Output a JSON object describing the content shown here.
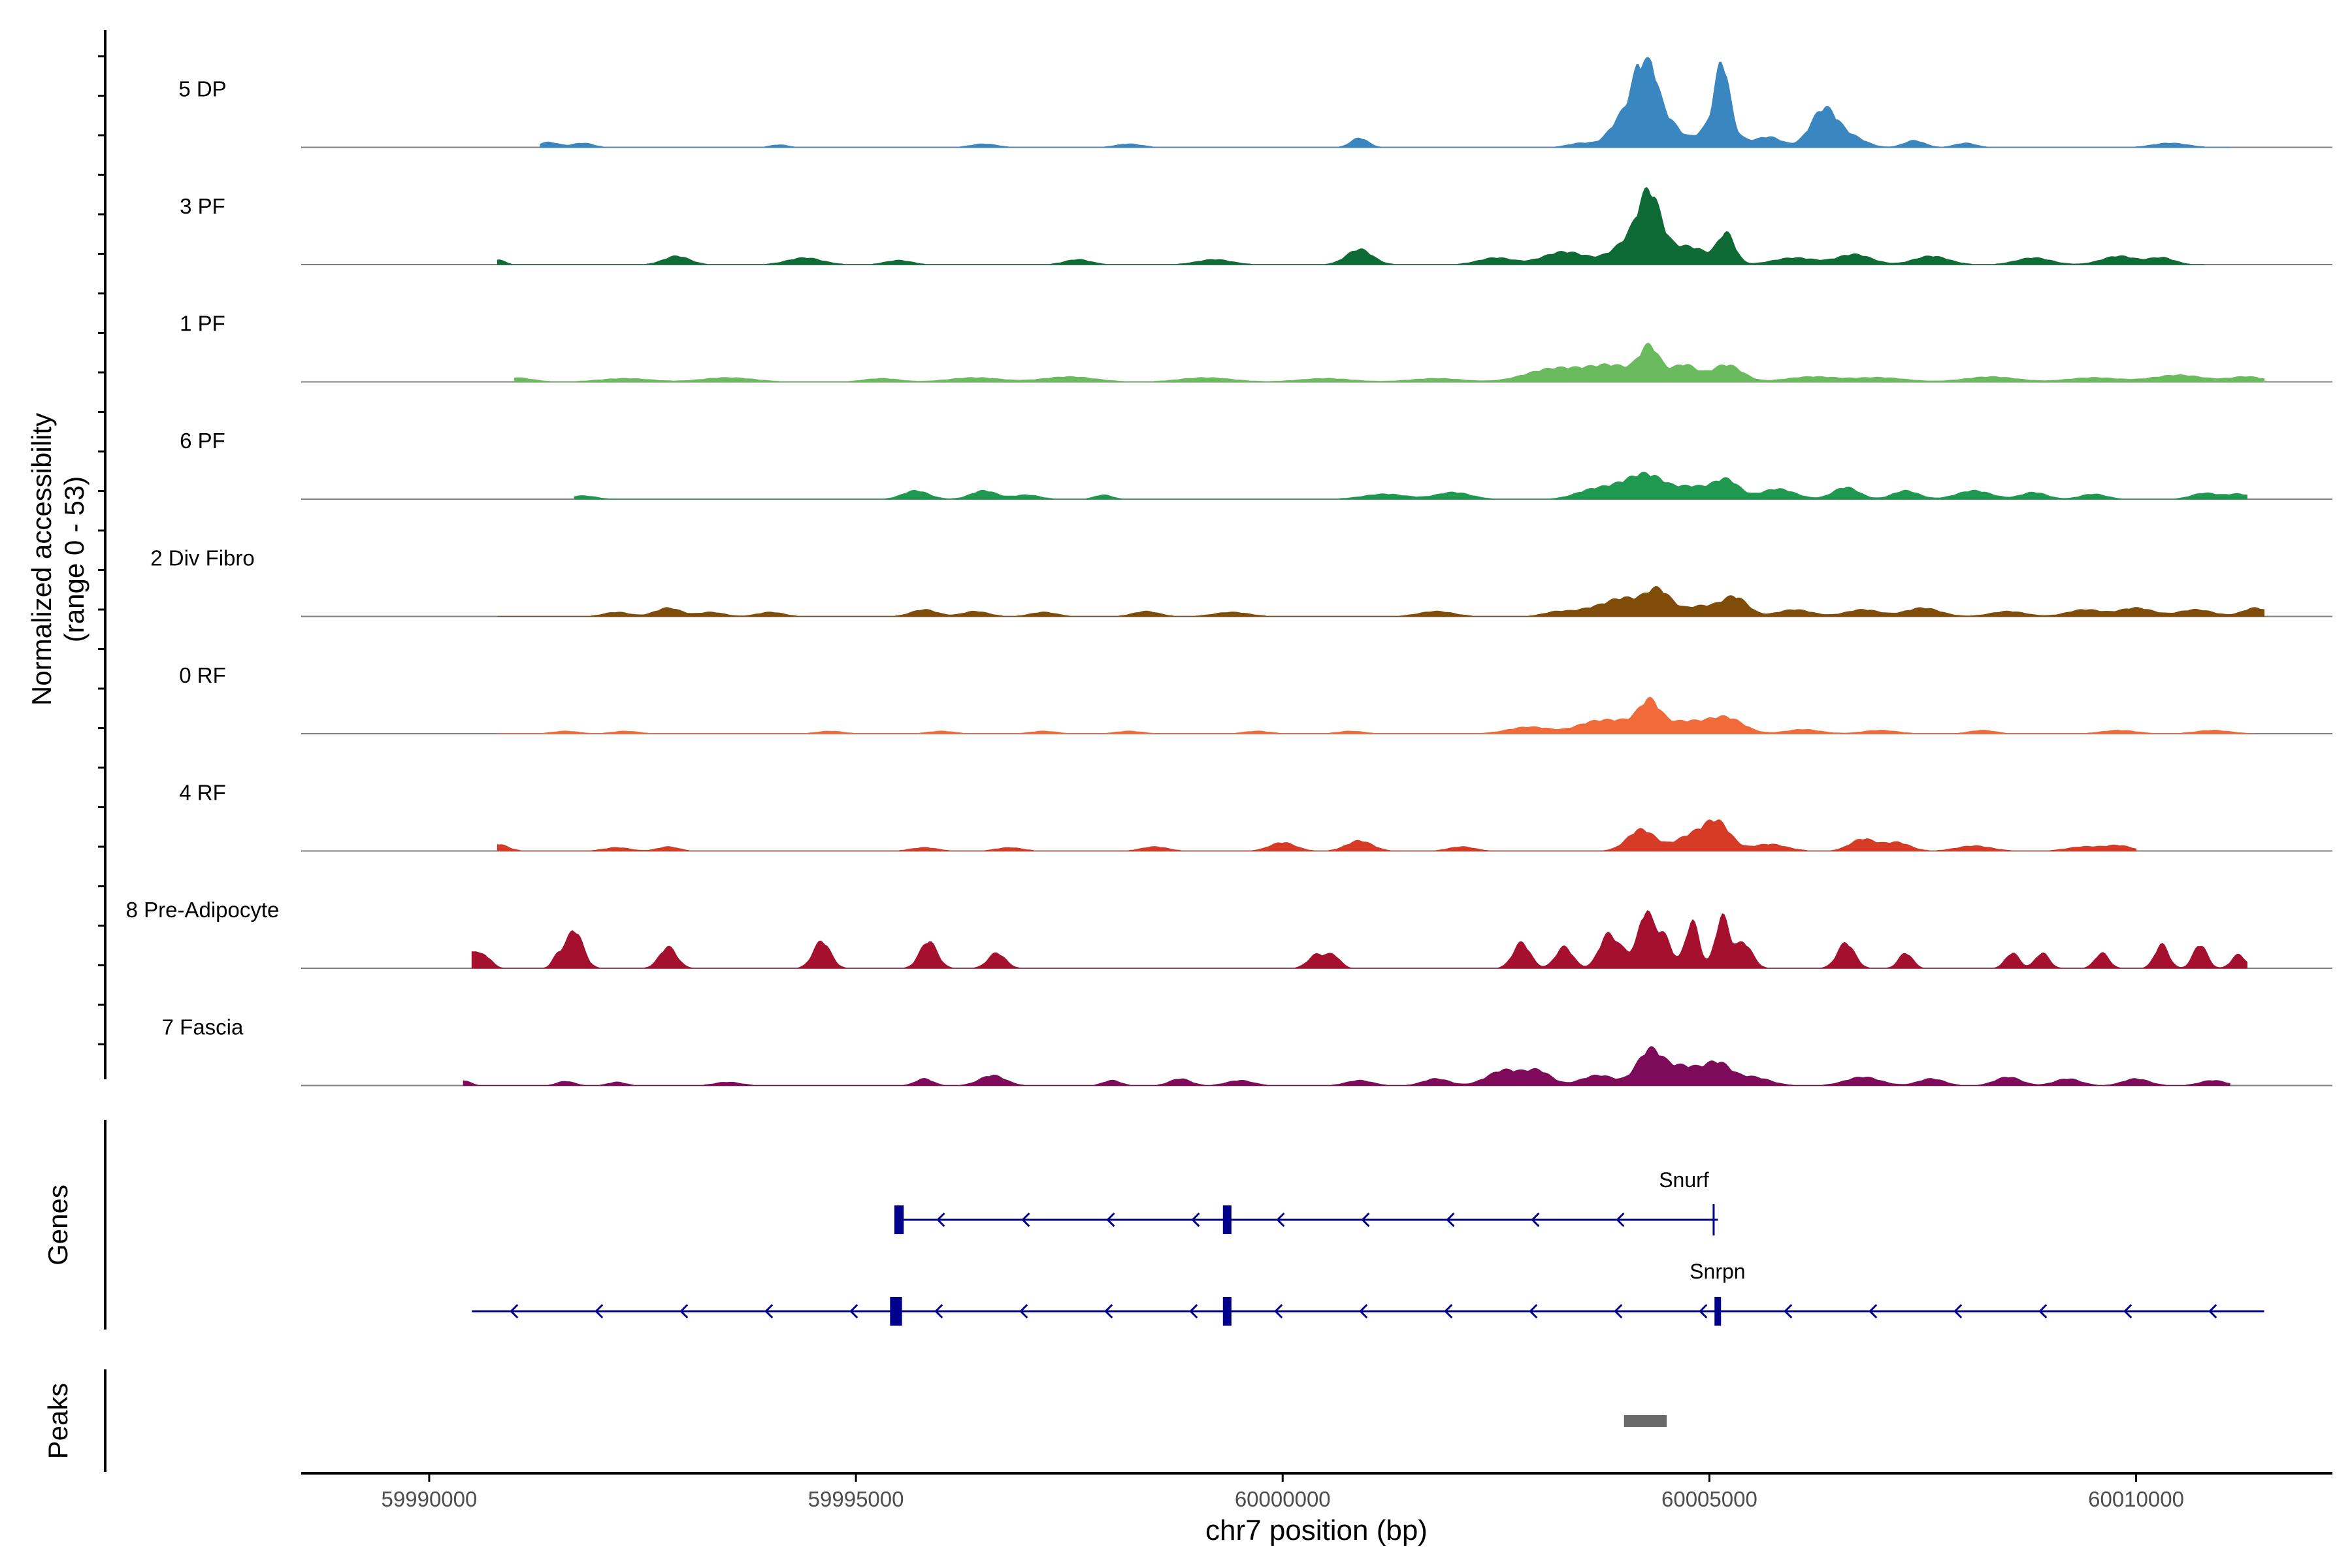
{
  "chart_data": {
    "type": "area",
    "title": "",
    "ylabel_line1": "Normalized accessibility",
    "ylabel_line2": "(range 0 - 53)",
    "y_range": [
      0,
      53
    ],
    "xlabel": "chr7 position (bp)",
    "xlim": [
      59988500,
      60012300
    ],
    "x_ticks": [
      59990000,
      59995000,
      60000000,
      60005000,
      60010000
    ],
    "x_tick_labels": [
      "59990000",
      "59995000",
      "60000000",
      "60005000",
      "60010000"
    ],
    "tracks": [
      {
        "name": "5 DP",
        "color": "#3a86c0",
        "start": 59991300,
        "end": 60011100,
        "peaks": [
          [
            59991400,
            6,
            120
          ],
          [
            59991800,
            5,
            120
          ],
          [
            59994100,
            3,
            100
          ],
          [
            59996500,
            4,
            150
          ],
          [
            59998200,
            4,
            150
          ],
          [
            60000900,
            11,
            100
          ],
          [
            60003500,
            5,
            150
          ],
          [
            60004000,
            36,
            160
          ],
          [
            60004250,
            100,
            120
          ],
          [
            60004500,
            30,
            150
          ],
          [
            60005150,
            72,
            80
          ],
          [
            60005100,
            30,
            200
          ],
          [
            60005700,
            12,
            150
          ],
          [
            60006350,
            46,
            160
          ],
          [
            60006700,
            10,
            150
          ],
          [
            60007400,
            8,
            120
          ],
          [
            60008000,
            5,
            120
          ],
          [
            60010400,
            5,
            200
          ]
        ]
      },
      {
        "name": "3 PF",
        "color": "#0e6b35",
        "start": 59990800,
        "end": 60010800,
        "peaks": [
          [
            59990800,
            6,
            80
          ],
          [
            59992900,
            10,
            150
          ],
          [
            59994400,
            8,
            200
          ],
          [
            59995500,
            5,
            150
          ],
          [
            59997600,
            6,
            150
          ],
          [
            59999200,
            6,
            200
          ],
          [
            60000900,
            18,
            150
          ],
          [
            60002500,
            8,
            200
          ],
          [
            60003300,
            15,
            250
          ],
          [
            60004200,
            38,
            260
          ],
          [
            60004300,
            52,
            120
          ],
          [
            60004800,
            18,
            200
          ],
          [
            60005200,
            35,
            100
          ],
          [
            60006000,
            8,
            250
          ],
          [
            60006700,
            12,
            200
          ],
          [
            60007600,
            10,
            200
          ],
          [
            60008800,
            8,
            200
          ],
          [
            60009800,
            10,
            200
          ],
          [
            60010300,
            8,
            150
          ]
        ]
      },
      {
        "name": "1 PF",
        "color": "#6abb5d",
        "start": 59991000,
        "end": 60011500,
        "peaks": [
          [
            59991000,
            5,
            200
          ],
          [
            59992300,
            4,
            300
          ],
          [
            59993500,
            5,
            300
          ],
          [
            59995300,
            4,
            200
          ],
          [
            59996400,
            5,
            300
          ],
          [
            59997500,
            6,
            300
          ],
          [
            59999100,
            5,
            300
          ],
          [
            60000500,
            4,
            300
          ],
          [
            60001800,
            4,
            300
          ],
          [
            60003100,
            12,
            300
          ],
          [
            60003500,
            8,
            300
          ],
          [
            60003900,
            16,
            250
          ],
          [
            60004300,
            38,
            120
          ],
          [
            60004700,
            20,
            150
          ],
          [
            60005200,
            20,
            180
          ],
          [
            60006200,
            6,
            300
          ],
          [
            60007000,
            5,
            300
          ],
          [
            60008300,
            6,
            300
          ],
          [
            60009500,
            5,
            300
          ],
          [
            60010500,
            8,
            300
          ],
          [
            60011300,
            6,
            200
          ]
        ]
      },
      {
        "name": "6 PF",
        "color": "#1f9950",
        "start": 59991700,
        "end": 60011300,
        "peaks": [
          [
            59991800,
            4,
            150
          ],
          [
            59995700,
            10,
            150
          ],
          [
            59996500,
            10,
            150
          ],
          [
            59997000,
            5,
            150
          ],
          [
            59997900,
            5,
            100
          ],
          [
            60001200,
            6,
            250
          ],
          [
            60002000,
            8,
            200
          ],
          [
            60003600,
            8,
            200
          ],
          [
            60004000,
            14,
            250
          ],
          [
            60004300,
            22,
            200
          ],
          [
            60004800,
            14,
            200
          ],
          [
            60005200,
            22,
            150
          ],
          [
            60005800,
            12,
            200
          ],
          [
            60006600,
            14,
            150
          ],
          [
            60007300,
            10,
            150
          ],
          [
            60008100,
            10,
            200
          ],
          [
            60008800,
            8,
            150
          ],
          [
            60009500,
            6,
            150
          ],
          [
            60010800,
            7,
            150
          ],
          [
            60011200,
            6,
            150
          ]
        ]
      },
      {
        "name": "2 Div Fibro",
        "color": "#7f4c0a",
        "start": 59990800,
        "end": 60011500,
        "peaks": [
          [
            59992200,
            5,
            150
          ],
          [
            59992800,
            10,
            150
          ],
          [
            59993300,
            5,
            150
          ],
          [
            59994000,
            5,
            150
          ],
          [
            59995800,
            8,
            150
          ],
          [
            59996400,
            6,
            150
          ],
          [
            59997200,
            5,
            150
          ],
          [
            59998400,
            6,
            150
          ],
          [
            59999400,
            5,
            200
          ],
          [
            60001800,
            6,
            200
          ],
          [
            60003200,
            5,
            150
          ],
          [
            60003600,
            8,
            200
          ],
          [
            60004000,
            20,
            200
          ],
          [
            60004400,
            30,
            150
          ],
          [
            60004900,
            12,
            200
          ],
          [
            60005300,
            22,
            150
          ],
          [
            60006000,
            8,
            200
          ],
          [
            60006800,
            8,
            200
          ],
          [
            60007500,
            10,
            200
          ],
          [
            60008500,
            6,
            200
          ],
          [
            60009400,
            8,
            200
          ],
          [
            60010000,
            10,
            200
          ],
          [
            60010700,
            8,
            200
          ],
          [
            60011400,
            10,
            150
          ]
        ]
      },
      {
        "name": "0 RF",
        "color": "#f06a3a",
        "start": 59990800,
        "end": 60011400,
        "peaks": [
          [
            59991600,
            3,
            150
          ],
          [
            59992300,
            3,
            150
          ],
          [
            59994700,
            3,
            150
          ],
          [
            59996000,
            3,
            150
          ],
          [
            59997200,
            3,
            150
          ],
          [
            59998200,
            3,
            150
          ],
          [
            59999700,
            3,
            150
          ],
          [
            60000800,
            3,
            150
          ],
          [
            60002900,
            8,
            250
          ],
          [
            60003600,
            10,
            200
          ],
          [
            60004000,
            14,
            250
          ],
          [
            60004300,
            30,
            120
          ],
          [
            60004700,
            14,
            250
          ],
          [
            60005200,
            18,
            200
          ],
          [
            60006100,
            5,
            200
          ],
          [
            60007000,
            4,
            200
          ],
          [
            60008200,
            4,
            150
          ],
          [
            60009800,
            4,
            200
          ],
          [
            60010900,
            4,
            200
          ]
        ]
      },
      {
        "name": "4 RF",
        "color": "#d63b26",
        "start": 59990800,
        "end": 60010000,
        "peaks": [
          [
            59990800,
            8,
            120
          ],
          [
            59992200,
            4,
            150
          ],
          [
            59992800,
            5,
            120
          ],
          [
            59995800,
            4,
            150
          ],
          [
            59996800,
            4,
            150
          ],
          [
            59998500,
            5,
            150
          ],
          [
            60000000,
            10,
            150
          ],
          [
            60000900,
            12,
            150
          ],
          [
            60002100,
            5,
            150
          ],
          [
            60004200,
            25,
            160
          ],
          [
            60004800,
            18,
            200
          ],
          [
            60005100,
            30,
            150
          ],
          [
            60005700,
            8,
            200
          ],
          [
            60006800,
            14,
            150
          ],
          [
            60007200,
            10,
            150
          ],
          [
            60008100,
            6,
            200
          ],
          [
            60009400,
            5,
            200
          ],
          [
            60009800,
            6,
            150
          ]
        ]
      },
      {
        "name": "8 Pre-Adipocyte",
        "color": "#a5102e",
        "start": 59990500,
        "end": 60011300,
        "peaks": [
          [
            59990500,
            18,
            60
          ],
          [
            59990650,
            15,
            80
          ],
          [
            59991500,
            12,
            60
          ],
          [
            59991700,
            45,
            100
          ],
          [
            59992800,
            25,
            100
          ],
          [
            59994600,
            32,
            100
          ],
          [
            59995850,
            32,
            100
          ],
          [
            59996650,
            18,
            100
          ],
          [
            60000400,
            16,
            100
          ],
          [
            60000600,
            14,
            80
          ],
          [
            60002800,
            30,
            100
          ],
          [
            60003300,
            25,
            100
          ],
          [
            60003800,
            35,
            100
          ],
          [
            60004000,
            18,
            120
          ],
          [
            60004250,
            60,
            80
          ],
          [
            60004450,
            40,
            100
          ],
          [
            60004800,
            55,
            80
          ],
          [
            60005150,
            60,
            80
          ],
          [
            60005400,
            30,
            100
          ],
          [
            60006600,
            30,
            100
          ],
          [
            60007300,
            18,
            80
          ],
          [
            60008550,
            18,
            80
          ],
          [
            60008900,
            18,
            80
          ],
          [
            60009600,
            18,
            80
          ],
          [
            60010300,
            28,
            80
          ],
          [
            60010750,
            28,
            80
          ],
          [
            60011200,
            16,
            80
          ]
        ]
      },
      {
        "name": "7 Fascia",
        "color": "#7e0a5a",
        "start": 59990400,
        "end": 60011100,
        "peaks": [
          [
            59990400,
            6,
            80
          ],
          [
            59991600,
            5,
            100
          ],
          [
            59992200,
            4,
            100
          ],
          [
            59993500,
            4,
            150
          ],
          [
            59995800,
            8,
            100
          ],
          [
            59996600,
            12,
            150
          ],
          [
            59998000,
            6,
            100
          ],
          [
            59998800,
            8,
            120
          ],
          [
            59999500,
            6,
            150
          ],
          [
            60000900,
            6,
            150
          ],
          [
            60001800,
            8,
            150
          ],
          [
            60002600,
            18,
            200
          ],
          [
            60003000,
            16,
            150
          ],
          [
            60003700,
            12,
            200
          ],
          [
            60004300,
            40,
            150
          ],
          [
            60004700,
            22,
            200
          ],
          [
            60005100,
            24,
            150
          ],
          [
            60005500,
            10,
            200
          ],
          [
            60006800,
            10,
            200
          ],
          [
            60007600,
            8,
            150
          ],
          [
            60008500,
            10,
            150
          ],
          [
            60009200,
            8,
            150
          ],
          [
            60010000,
            8,
            150
          ],
          [
            60010900,
            6,
            150
          ]
        ]
      }
    ],
    "genes_label": "Genes",
    "peaks_label": "Peaks",
    "genes": [
      {
        "name": "Snurf",
        "start": 59995500,
        "end": 60005100,
        "strand": "-",
        "exons": [
          [
            59995450,
            59995560
          ],
          [
            59999300,
            59999400
          ]
        ],
        "tss_tick": 60005050
      },
      {
        "name": "Snrpn",
        "start": 59990500,
        "end": 60011500,
        "strand": "-",
        "exons": [
          [
            59995400,
            59995540
          ],
          [
            59999300,
            59999400
          ],
          [
            60005060,
            60005130
          ]
        ],
        "tss_tick": null
      }
    ],
    "peak_regions": [
      [
        60004000,
        60004500
      ]
    ]
  },
  "colors": {
    "axis": "#000000",
    "baseline": "#7f7f7f",
    "gene": "#00008b",
    "peak_region": "#696969",
    "tick_label": "#4d4d4d"
  }
}
